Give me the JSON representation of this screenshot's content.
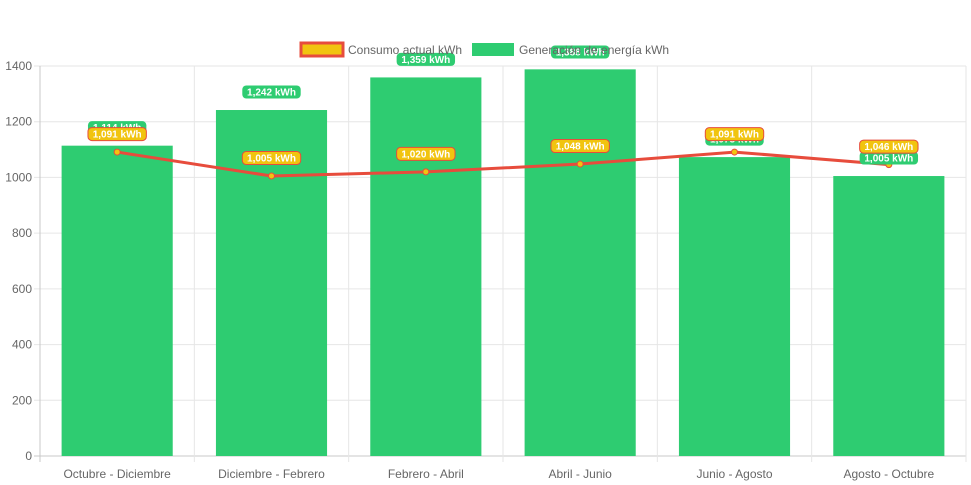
{
  "chart_data": {
    "type": "bar",
    "categories": [
      "Octubre - Diciembre",
      "Diciembre - Febrero",
      "Febrero - Abril",
      "Abril - Junio",
      "Junio - Agosto",
      "Agosto - Octubre"
    ],
    "series": [
      {
        "name": "Generación de energía kWh",
        "type": "bar",
        "color": "#2ecc71",
        "values": [
          1114,
          1242,
          1359,
          1388,
          1073,
          1005
        ],
        "labels": [
          "1,114 kWh",
          "1,242 kWh",
          "1,359 kWh",
          "1,388 kWh",
          "1,073 kWh",
          "1,005 kWh"
        ]
      },
      {
        "name": "Consumo actual kWh",
        "type": "line",
        "color": "#e74c3c",
        "marker_color": "#f1c40f",
        "values": [
          1091,
          1005,
          1020,
          1048,
          1091,
          1046
        ],
        "labels": [
          "1,091 kWh",
          "1,005 kWh",
          "1,020 kWh",
          "1,048 kWh",
          "1,091 kWh",
          "1,046 kWh"
        ]
      }
    ],
    "y_ticks": [
      0,
      200,
      400,
      600,
      800,
      1000,
      1200,
      1400
    ],
    "ylim": [
      0,
      1400
    ],
    "grid": true,
    "legend_position": "top"
  }
}
